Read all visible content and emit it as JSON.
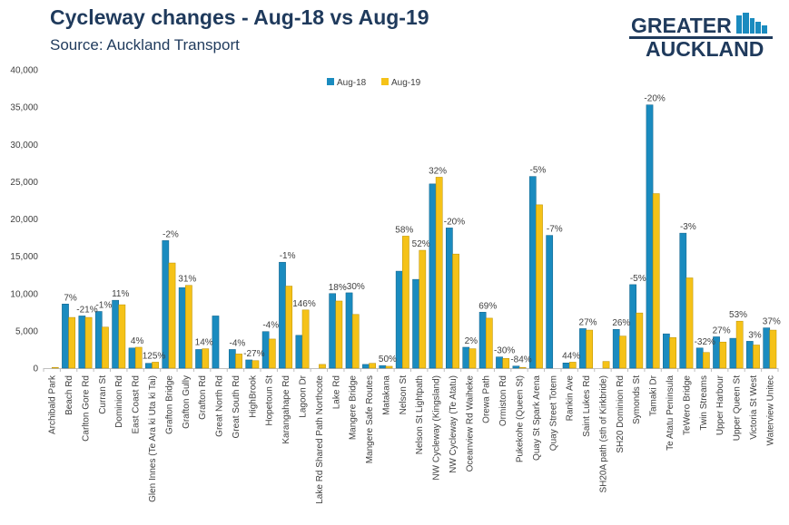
{
  "title": "Cycleway changes - Aug-18 vs Aug-19",
  "subtitle": "Source: Auckland Transport",
  "logo": {
    "line1": "GREATER",
    "line2": "AUCKLAND"
  },
  "colors": {
    "aug18": "#1a8bbf",
    "aug19": "#f5c218",
    "text": "#1f3a5c",
    "axis": "#bfbfbf"
  },
  "chart_data": {
    "type": "bar",
    "title": "Cycleway changes - Aug-18 vs Aug-19",
    "xlabel": "",
    "ylabel": "",
    "ylim": [
      0,
      40000
    ],
    "yticks": [
      "0",
      "5,000",
      "10,000",
      "15,000",
      "20,000",
      "25,000",
      "30,000",
      "35,000",
      "40,000"
    ],
    "legend_position": "top-center",
    "categories": [
      "Archibald Park",
      "Beach Rd",
      "Carlton Gore Rd",
      "Curran St",
      "Dominion Rd",
      "East Coast Rd",
      "Glen Innes (Te Ara ki Uta ki Tai)",
      "Grafton Bridge",
      "Grafton Gully",
      "Grafton Rd",
      "Great North Rd",
      "Great South Rd",
      "HighBrook",
      "Hopetoun St",
      "Karangahape Rd",
      "Lagoon Dr",
      "Lake Rd Shared Path Northcote",
      "Lake Rd",
      "Mangere Bridge",
      "Mangere Safe Routes",
      "Matakana",
      "Nelson St",
      "Nelson St Lightpath",
      "NW Cycleway (Kingsland)",
      "NW Cycleway (Te Atatu)",
      "Oceanview Rd Waiheke",
      "Orewa Path",
      "Ormiston Rd",
      "Pukekohe (Queen St)",
      "Quay St Spark Arena",
      "Quay Street Totem",
      "Rankin Ave",
      "Saint Lukes Rd",
      "SH20A path (sth of Kirkbride)",
      "SH20 Dominion Rd",
      "Symonds St",
      "Tamaki Dr",
      "Te Atatu Peninsula",
      "TeWero Bridge",
      "Twin Streams",
      "Upper Harbour",
      "Upper Queen St",
      "Victoria St West",
      "Waterview Unitec"
    ],
    "series": [
      {
        "name": "Aug-18",
        "values": [
          0,
          8600,
          7000,
          7600,
          9100,
          2700,
          650,
          17100,
          10800,
          2500,
          7000,
          2500,
          1100,
          4900,
          14200,
          4400,
          0,
          10000,
          10100,
          500,
          350,
          13000,
          11900,
          24700,
          18800,
          2800,
          7500,
          1500,
          280,
          25700,
          17800,
          700,
          5300,
          0,
          5200,
          11200,
          35300,
          4600,
          18100,
          2700,
          4200,
          4000,
          3600,
          5400
        ]
      },
      {
        "name": "Aug-19",
        "values": [
          100,
          6800,
          6800,
          5500,
          8500,
          2800,
          800,
          14100,
          11100,
          2600,
          0,
          1900,
          1000,
          3900,
          11000,
          7800,
          500,
          9000,
          7200,
          650,
          250,
          17700,
          15800,
          25600,
          15300,
          2600,
          6700,
          1300,
          100,
          21900,
          0,
          800,
          5100,
          900,
          4300,
          7400,
          23400,
          4100,
          12100,
          2100,
          3500,
          6300,
          3100,
          5100
        ]
      }
    ],
    "pct_labels": [
      "",
      "7%",
      "-21%",
      "-1%",
      "11%",
      "4%",
      "125%",
      "-2%",
      "31%",
      "14%",
      "",
      "-4%",
      "-27%",
      "-4%",
      "-1%",
      "146%",
      "",
      "18%",
      "-30%",
      "",
      "50%",
      "58%",
      "52%",
      "32%",
      "-20%",
      "2%",
      "69%",
      "-30%",
      "-84%",
      "-5%",
      "-7%",
      "44%",
      "27%",
      "",
      "26%",
      "-5%",
      "-20%",
      "",
      "-3%",
      "-32%",
      "27%",
      "53%",
      "3%",
      "37%"
    ]
  }
}
